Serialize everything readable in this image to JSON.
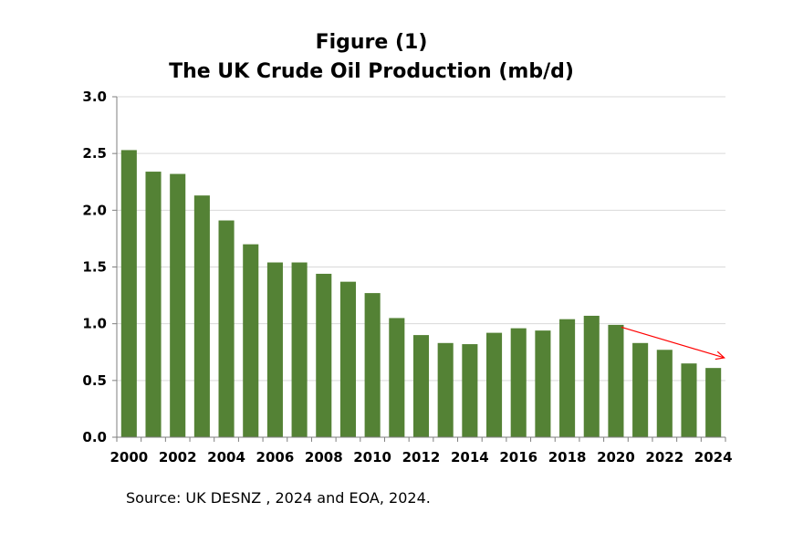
{
  "title_line1": "Figure (1)",
  "title_line2": "The UK Crude Oil Production (mb/d)",
  "source": "Source: UK DESNZ , 2024 and EOA, 2024.",
  "colors": {
    "bar": "#548235",
    "grid": "#d9d9d9",
    "axis": "#7f7f7f",
    "trend_arrow": "#ff0000"
  },
  "chart_data": {
    "type": "bar",
    "title": "The UK Crude Oil Production (mb/d)",
    "xlabel": "",
    "ylabel": "",
    "ylim": [
      0,
      3.0
    ],
    "yticks": [
      "0.0",
      "0.5",
      "1.0",
      "1.5",
      "2.0",
      "2.5",
      "3.0"
    ],
    "categories": [
      "2000",
      "2001",
      "2002",
      "2003",
      "2004",
      "2005",
      "2006",
      "2007",
      "2008",
      "2009",
      "2010",
      "2011",
      "2012",
      "2013",
      "2014",
      "2015",
      "2016",
      "2017",
      "2018",
      "2019",
      "2020",
      "2021",
      "2022",
      "2023",
      "2024"
    ],
    "xtick_labels": [
      "2000",
      "2002",
      "2004",
      "2006",
      "2008",
      "2010",
      "2012",
      "2014",
      "2016",
      "2018",
      "2020",
      "2022",
      "2024"
    ],
    "values": [
      2.53,
      2.34,
      2.32,
      2.13,
      1.91,
      1.7,
      1.54,
      1.54,
      1.44,
      1.37,
      1.27,
      1.05,
      0.9,
      0.83,
      0.82,
      0.92,
      0.96,
      0.94,
      1.04,
      1.07,
      0.99,
      0.83,
      0.77,
      0.65,
      0.61
    ],
    "grid": true,
    "annotations": [
      {
        "type": "arrow",
        "from_x": "2020",
        "from_y": 0.97,
        "to_x": "2024",
        "to_y": 0.7
      }
    ]
  }
}
